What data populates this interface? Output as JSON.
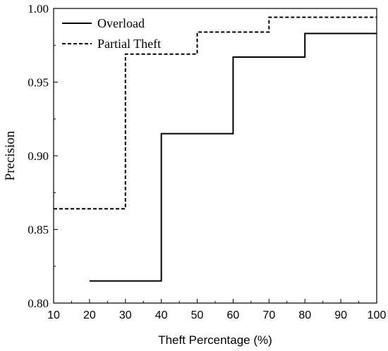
{
  "chart_data": {
    "type": "line",
    "step": true,
    "xlabel": "Theft Percentage (%)",
    "ylabel": "Precision",
    "xlim": [
      10,
      100
    ],
    "ylim": [
      0.8,
      1.0
    ],
    "x_ticks": [
      10,
      20,
      30,
      40,
      50,
      60,
      70,
      80,
      90,
      100
    ],
    "y_ticks": [
      0.8,
      0.85,
      0.9,
      0.95,
      1.0
    ],
    "x_tick_labels": [
      "10",
      "20",
      "30",
      "40",
      "50",
      "60",
      "70",
      "80",
      "90",
      "100"
    ],
    "y_tick_labels": [
      "0.80",
      "0.85",
      "0.90",
      "0.95",
      "1.00"
    ],
    "legend_position": "top-left",
    "grid": false,
    "series": [
      {
        "name": "Overload",
        "style": "solid",
        "color": "#000000",
        "x": [
          20,
          40,
          60,
          80,
          100
        ],
        "y": [
          0.815,
          0.915,
          0.967,
          0.983,
          0.983
        ]
      },
      {
        "name": "Partial Theft",
        "style": "dashed",
        "color": "#000000",
        "x": [
          10,
          30,
          50,
          70,
          100
        ],
        "y": [
          0.864,
          0.969,
          0.984,
          0.994,
          0.994
        ]
      }
    ]
  }
}
